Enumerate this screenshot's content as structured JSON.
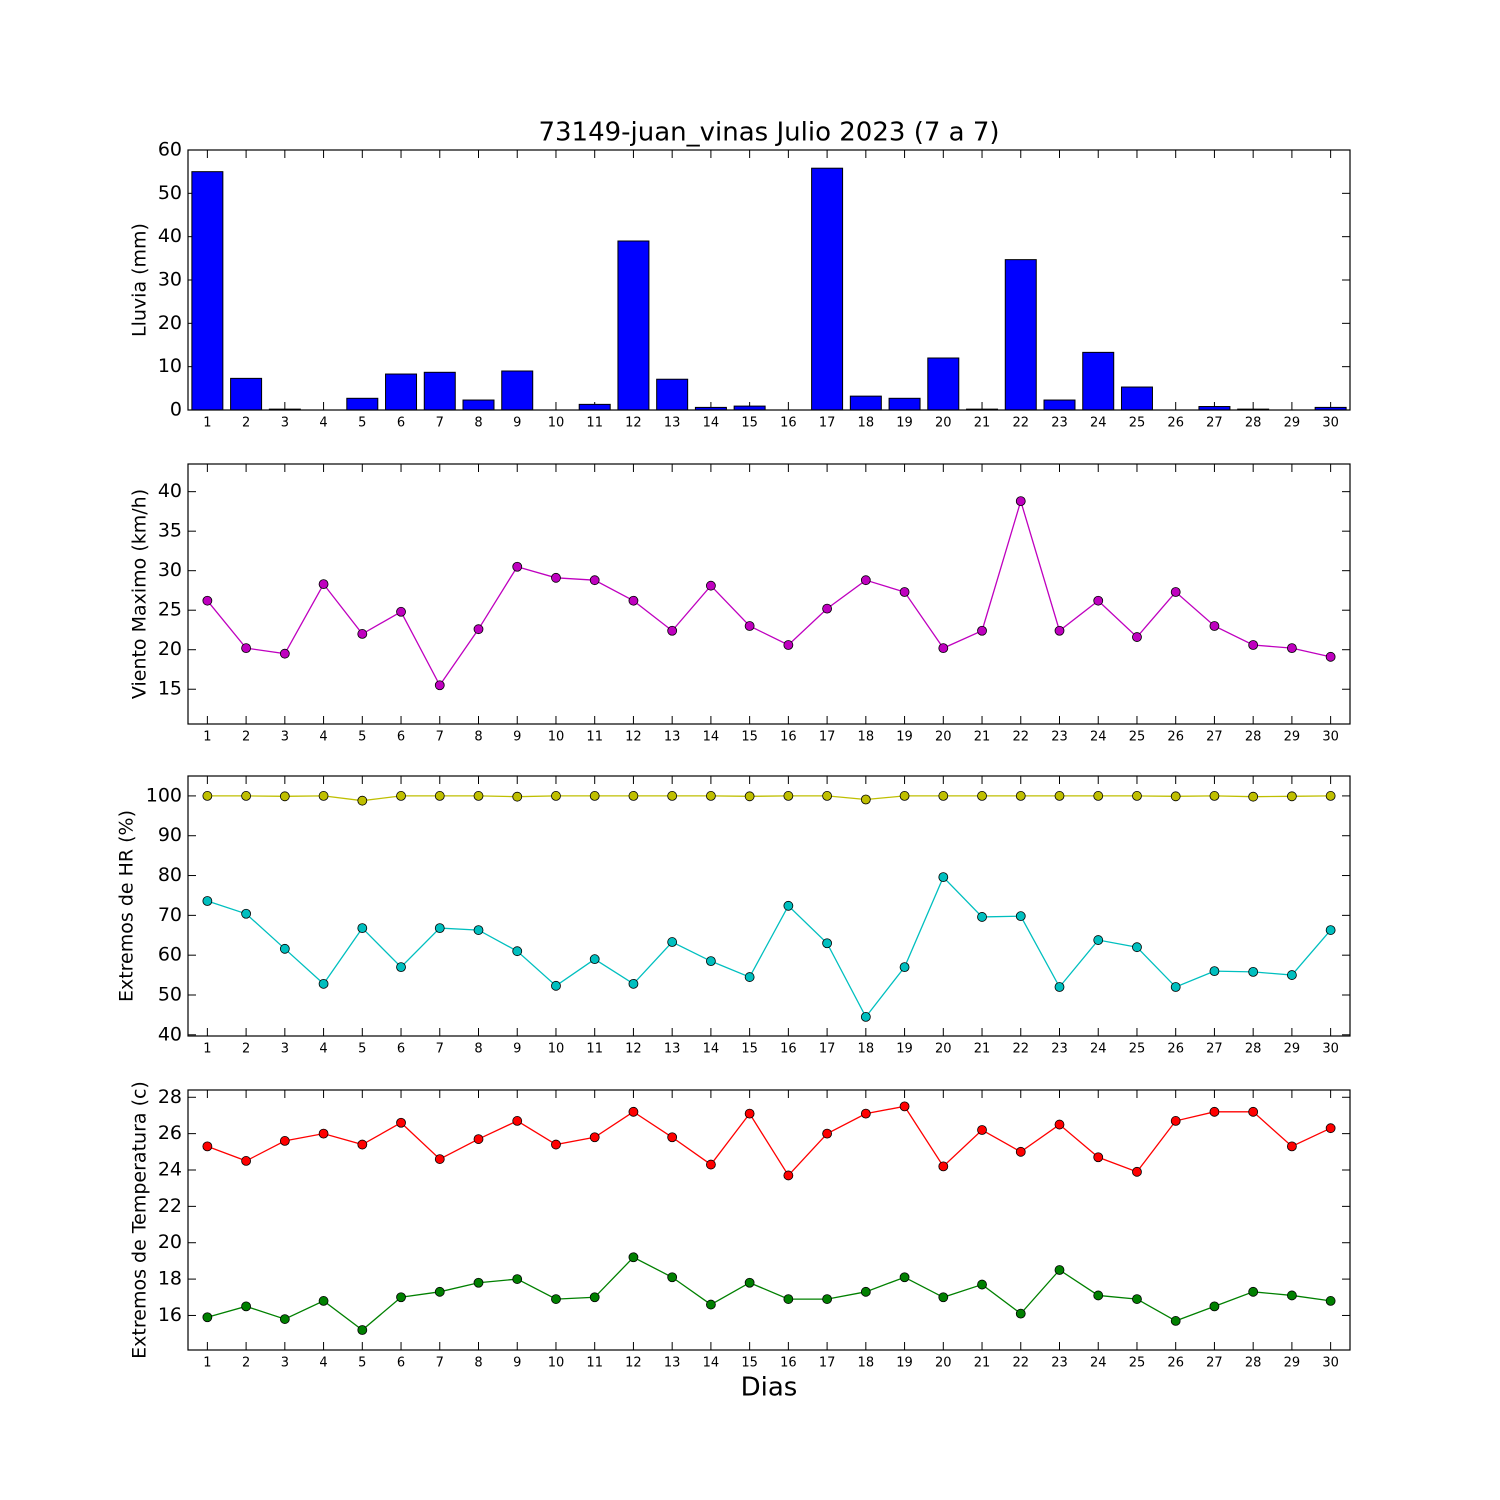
{
  "chart_data": [
    {
      "type": "bar",
      "title": "73149-juan_vinas Julio 2023  (7 a 7)",
      "y_label": "Lluvia (mm)",
      "categories": [
        "1",
        "2",
        "3",
        "4",
        "5",
        "6",
        "7",
        "8",
        "9",
        "10",
        "11",
        "12",
        "13",
        "14",
        "15",
        "16",
        "17",
        "18",
        "19",
        "20",
        "21",
        "22",
        "23",
        "24",
        "25",
        "26",
        "27",
        "28",
        "29",
        "30"
      ],
      "values": [
        55,
        7.3,
        0.2,
        0,
        2.7,
        8.3,
        8.7,
        2.3,
        9,
        0,
        1.3,
        39,
        7.1,
        0.6,
        0.9,
        0,
        55.8,
        3.2,
        2.7,
        12,
        0.2,
        34.7,
        2.3,
        13.3,
        5.3,
        0,
        0.8,
        0.2,
        0,
        0.6
      ],
      "color": "#0000ff",
      "ylim": [
        0,
        60
      ],
      "yticks": [
        0,
        10,
        20,
        30,
        40,
        50,
        60
      ]
    },
    {
      "type": "line",
      "y_label": "Viento Maximo (km/h)",
      "categories": [
        "1",
        "2",
        "3",
        "4",
        "5",
        "6",
        "7",
        "8",
        "9",
        "10",
        "11",
        "12",
        "13",
        "14",
        "15",
        "16",
        "17",
        "18",
        "19",
        "20",
        "21",
        "22",
        "23",
        "24",
        "25",
        "26",
        "27",
        "28",
        "29",
        "30"
      ],
      "series": [
        {
          "color": "#bf00bf",
          "values": [
            26.2,
            20.2,
            19.5,
            28.3,
            22,
            24.8,
            15.5,
            22.6,
            30.5,
            29.1,
            28.8,
            26.2,
            22.4,
            28.1,
            23,
            20.6,
            25.2,
            28.8,
            27.3,
            20.2,
            22.4,
            38.8,
            22.4,
            26.2,
            21.6,
            27.3,
            23,
            20.6,
            20.2,
            19.1
          ]
        }
      ],
      "ylim": [
        10.6,
        43.5
      ],
      "yticks": [
        15,
        20,
        25,
        30,
        35,
        40
      ]
    },
    {
      "type": "line",
      "y_label": "Extremos de HR (%)",
      "categories": [
        "1",
        "2",
        "3",
        "4",
        "5",
        "6",
        "7",
        "8",
        "9",
        "10",
        "11",
        "12",
        "13",
        "14",
        "15",
        "16",
        "17",
        "18",
        "19",
        "20",
        "21",
        "22",
        "23",
        "24",
        "25",
        "26",
        "27",
        "28",
        "29",
        "30"
      ],
      "series": [
        {
          "color": "#bfbf00",
          "values": [
            100,
            100,
            99.9,
            100,
            98.8,
            100,
            100,
            100,
            99.8,
            100,
            100,
            100,
            100,
            100,
            99.9,
            100,
            100,
            99.1,
            100,
            100,
            100,
            100,
            100,
            100,
            100,
            99.9,
            100,
            99.8,
            99.9,
            100
          ]
        },
        {
          "color": "#00bfbf",
          "values": [
            73.6,
            70.4,
            61.6,
            52.8,
            66.8,
            57,
            66.8,
            66.3,
            61,
            52.3,
            59,
            52.8,
            63.3,
            58.5,
            54.5,
            72.4,
            63,
            44.5,
            57,
            79.6,
            69.6,
            69.8,
            52,
            63.8,
            62,
            52,
            56,
            55.8,
            55,
            66.3
          ]
        }
      ],
      "ylim": [
        39.7,
        105
      ],
      "yticks": [
        40,
        50,
        60,
        70,
        80,
        90,
        100
      ]
    },
    {
      "type": "line",
      "y_label": "Extremos de Temperatura (c)",
      "x_label": "Dias",
      "categories": [
        "1",
        "2",
        "3",
        "4",
        "5",
        "6",
        "7",
        "8",
        "9",
        "10",
        "11",
        "12",
        "13",
        "14",
        "15",
        "16",
        "17",
        "18",
        "19",
        "20",
        "21",
        "22",
        "23",
        "24",
        "25",
        "26",
        "27",
        "28",
        "29",
        "30"
      ],
      "series": [
        {
          "color": "#ff0000",
          "values": [
            25.3,
            24.5,
            25.6,
            26,
            25.4,
            26.6,
            24.6,
            25.7,
            26.7,
            25.4,
            25.8,
            27.2,
            25.8,
            24.3,
            27.1,
            23.7,
            26,
            27.1,
            27.5,
            24.2,
            26.2,
            25,
            26.5,
            24.7,
            23.9,
            26.7,
            27.2,
            27.2,
            25.3,
            26.3
          ]
        },
        {
          "color": "#008000",
          "values": [
            15.9,
            16.5,
            15.8,
            16.8,
            15.2,
            17,
            17.3,
            17.8,
            18,
            16.9,
            17,
            19.2,
            18.1,
            16.6,
            17.8,
            16.9,
            16.9,
            17.3,
            18.1,
            17,
            17.7,
            16.1,
            18.5,
            17.1,
            16.9,
            15.7,
            16.5,
            17.3,
            17.1,
            16.8
          ]
        }
      ],
      "ylim": [
        14.1,
        28.4
      ],
      "yticks": [
        16,
        18,
        20,
        22,
        24,
        26,
        28
      ]
    }
  ]
}
